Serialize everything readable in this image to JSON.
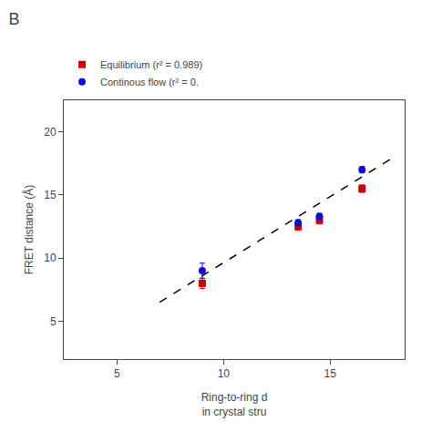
{
  "chart_data": {
    "type": "scatter",
    "title": "B",
    "x_label": "Ring-to-ring d\nin crystal stru",
    "y_label": "FRET distance (Å)",
    "xlim": [
      2.5,
      18.5
    ],
    "xticks": [
      5,
      10,
      15
    ],
    "ylim": [
      2.0,
      22.5
    ],
    "yticks": [
      5,
      10,
      15,
      20
    ],
    "grid": false,
    "legend": "top",
    "series": [
      {
        "type": "line",
        "line_style": "dashed",
        "color": "#000000",
        "x": [
          7.0,
          18.0
        ],
        "values": [
          6.5,
          18.0
        ]
      },
      {
        "type": "scatter",
        "name": "Equilibrium (r² = 0.989)",
        "color": "#cc0000",
        "marker": "square",
        "x": [
          9.0,
          13.5,
          14.5,
          16.5
        ],
        "values": [
          8.0,
          12.5,
          13.0,
          15.5
        ],
        "error": [
          0.4,
          0.3,
          0.3,
          0.3
        ]
      },
      {
        "type": "scatter",
        "name": "Continous flow (r² = 0.",
        "color": "#1111cc",
        "marker": "circle",
        "x": [
          9.0,
          13.5,
          14.5,
          16.5
        ],
        "values": [
          9.0,
          12.8,
          13.3,
          17.0
        ],
        "error": [
          0.6,
          0.25,
          0.25,
          0.25
        ]
      }
    ]
  }
}
